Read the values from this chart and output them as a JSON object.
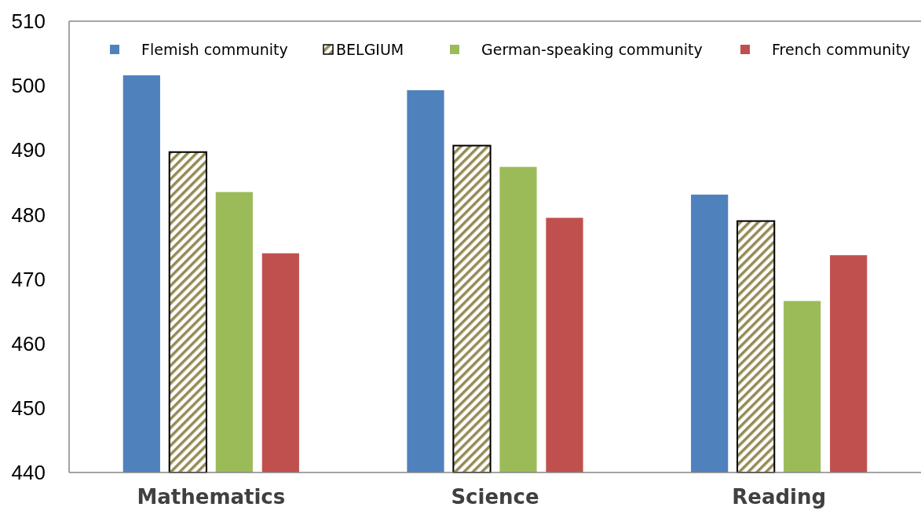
{
  "chart_data": {
    "type": "bar",
    "categories": [
      "Mathematics",
      "Science",
      "Reading"
    ],
    "series": [
      {
        "name": "Flemish community",
        "color": "#4f81bd",
        "values": [
          501.6,
          499.3,
          483.1
        ]
      },
      {
        "name": "BELGIUM",
        "color": "#948a54",
        "values": [
          489.7,
          490.7,
          479.0
        ]
      },
      {
        "name": "German-speaking community",
        "color": "#9bbb59",
        "values": [
          483.5,
          487.4,
          466.6
        ]
      },
      {
        "name": "French community",
        "color": "#c0504d",
        "values": [
          474.0,
          479.5,
          473.7
        ]
      }
    ],
    "ylim": [
      440,
      510
    ],
    "yticks": [
      440,
      450,
      460,
      470,
      480,
      490,
      500,
      510
    ],
    "grid": false,
    "legend": "top"
  }
}
